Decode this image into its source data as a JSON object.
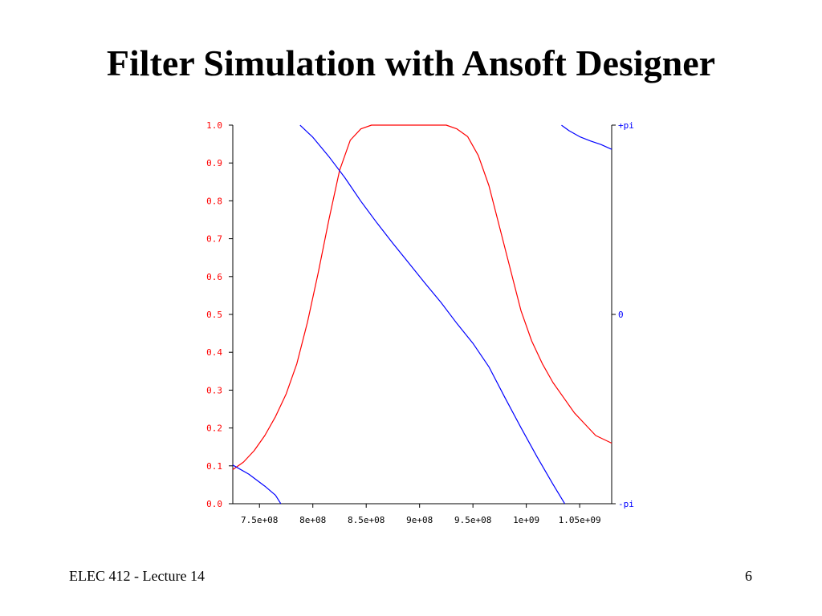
{
  "slide": {
    "title": "Filter Simulation with Ansoft Designer",
    "footer_left": "ELEC 412 - Lecture 14",
    "page_number": "6"
  },
  "chart_data": {
    "type": "line",
    "title": "",
    "xlabel": "",
    "ylabel": "",
    "xlim": [
      725000000,
      1080000000
    ],
    "ylim": [
      0,
      1
    ],
    "y2lim": [
      -3.14159,
      3.14159
    ],
    "grid": false,
    "x_ticks": [
      {
        "value": 750000000,
        "label": "7.5e+08"
      },
      {
        "value": 800000000,
        "label": "8e+08"
      },
      {
        "value": 850000000,
        "label": "8.5e+08"
      },
      {
        "value": 900000000,
        "label": "9e+08"
      },
      {
        "value": 950000000,
        "label": "9.5e+08"
      },
      {
        "value": 1000000000,
        "label": "1e+09"
      },
      {
        "value": 1050000000,
        "label": "1.05e+09"
      }
    ],
    "y_ticks": [
      {
        "value": 0.0,
        "label": "0.0"
      },
      {
        "value": 0.1,
        "label": "0.1"
      },
      {
        "value": 0.2,
        "label": "0.2"
      },
      {
        "value": 0.3,
        "label": "0.3"
      },
      {
        "value": 0.4,
        "label": "0.4"
      },
      {
        "value": 0.5,
        "label": "0.5"
      },
      {
        "value": 0.6,
        "label": "0.6"
      },
      {
        "value": 0.7,
        "label": "0.7"
      },
      {
        "value": 0.8,
        "label": "0.8"
      },
      {
        "value": 0.9,
        "label": "0.9"
      },
      {
        "value": 1.0,
        "label": "1.0"
      }
    ],
    "y2_ticks": [
      {
        "value": 3.14159,
        "label": "+pi"
      },
      {
        "value": 0,
        "label": "0"
      },
      {
        "value": -3.14159,
        "label": "-pi"
      }
    ],
    "colors": {
      "magnitude": "#ff0000",
      "phase": "#0000ff",
      "left_axis_labels": "#ff0000",
      "right_axis_labels": "#0000ff",
      "axis": "#000000"
    },
    "series": [
      {
        "axis": "left",
        "color": "#ff0000",
        "x": [
          725000000,
          735000000,
          745000000,
          755000000,
          765000000,
          775000000,
          785000000,
          795000000,
          805000000,
          815000000,
          825000000,
          835000000,
          845000000,
          855000000,
          865000000,
          875000000,
          900000000,
          925000000,
          935000000,
          945000000,
          955000000,
          965000000,
          975000000,
          985000000,
          995000000,
          1005000000,
          1015000000,
          1025000000,
          1035000000,
          1045000000,
          1055000000,
          1065000000,
          1080000000
        ],
        "y": [
          0.09,
          0.11,
          0.14,
          0.18,
          0.23,
          0.29,
          0.37,
          0.48,
          0.61,
          0.75,
          0.88,
          0.96,
          0.99,
          1.0,
          1.0,
          1.0,
          1.0,
          1.0,
          0.99,
          0.97,
          0.92,
          0.84,
          0.73,
          0.62,
          0.51,
          0.43,
          0.37,
          0.32,
          0.28,
          0.24,
          0.21,
          0.18,
          0.16
        ]
      },
      {
        "axis": "right",
        "color": "#0000ff",
        "x": [
          725000000,
          740000000,
          755000000,
          765000000,
          770000000
        ],
        "y": [
          -2.5,
          -2.65,
          -2.85,
          -3.0,
          -3.14
        ]
      },
      {
        "axis": "right",
        "color": "#0000ff",
        "x": [
          788000000,
          800000000,
          815000000,
          830000000,
          845000000,
          860000000,
          875000000,
          890000000,
          905000000,
          920000000,
          935000000,
          950000000,
          965000000,
          980000000,
          995000000,
          1010000000,
          1025000000,
          1036000000
        ],
        "y": [
          3.14,
          2.94,
          2.62,
          2.27,
          1.88,
          1.52,
          1.18,
          0.85,
          0.52,
          0.2,
          -0.15,
          -0.48,
          -0.87,
          -1.38,
          -1.88,
          -2.36,
          -2.82,
          -3.14
        ]
      },
      {
        "axis": "right",
        "color": "#0000ff",
        "x": [
          1033000000,
          1040000000,
          1050000000,
          1060000000,
          1070000000,
          1080000000
        ],
        "y": [
          3.14,
          3.05,
          2.95,
          2.88,
          2.82,
          2.74
        ]
      }
    ]
  }
}
